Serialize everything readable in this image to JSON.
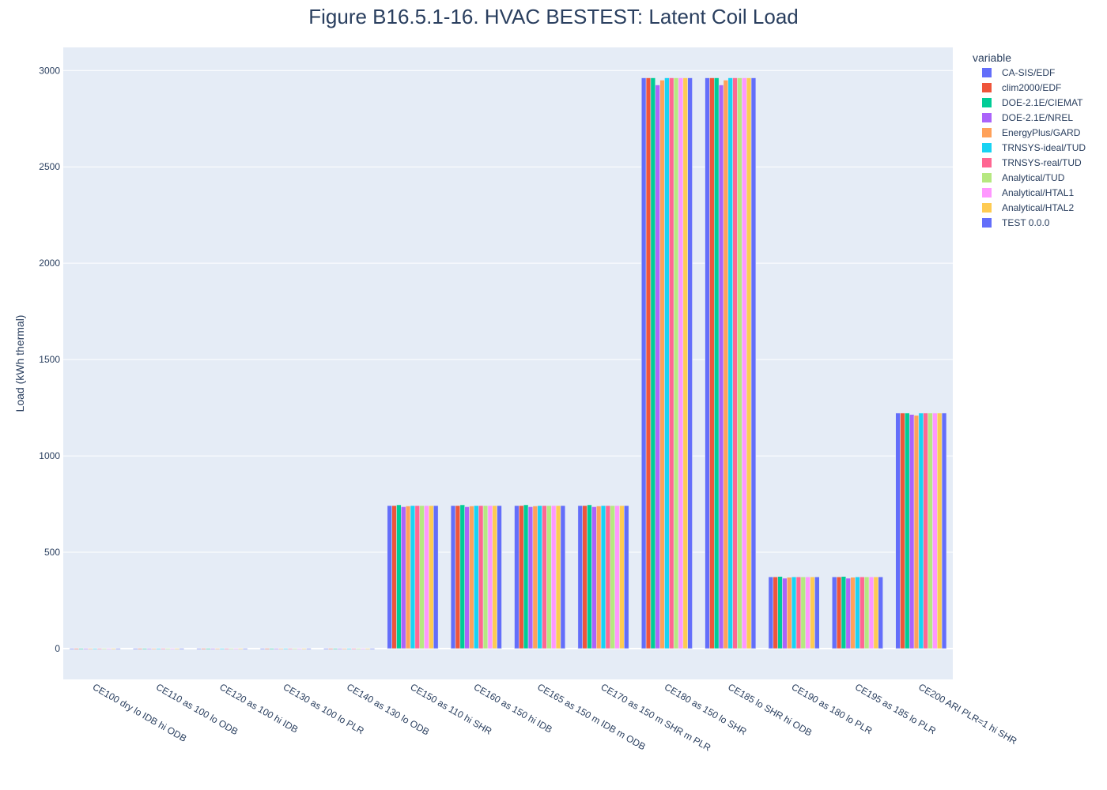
{
  "chart_data": {
    "type": "bar",
    "title": "Figure B16.5.1-16. HVAC BESTEST: Latent Coil Load",
    "xlabel": "",
    "ylabel": "Load (kWh thermal)",
    "ylim": [
      -160,
      3120
    ],
    "yticks": [
      0,
      500,
      1000,
      1500,
      2000,
      2500,
      3000
    ],
    "ytick_labels": [
      "0",
      "500",
      "1000",
      "1500",
      "2000",
      "2500",
      "3000"
    ],
    "grid": true,
    "legend_title": "variable",
    "legend_position": "right",
    "categories": [
      "CE100 dry lo IDB hi ODB",
      "CE110 as 100 lo ODB",
      "CE120 as 100 hi IDB",
      "CE130 as 100 lo PLR",
      "CE140 as 130 lo ODB",
      "CE150 as 110 hi SHR",
      "CE160 as 150 hi IDB",
      "CE165 as 150 m IDB m ODB",
      "CE170 as 150 m SHR m PLR",
      "CE180 as 150 lo SHR",
      "CE185 lo SHR hi ODB",
      "CE190 as 180 lo PLR",
      "CE195 as 185 lo PLR",
      "CE200 ARI  PLR=1 hi SHR"
    ],
    "series": [
      {
        "name": "CA-SIS/EDF",
        "color": "#636efa",
        "values": [
          0,
          0,
          0,
          0,
          0,
          742,
          742,
          742,
          742,
          2962,
          2962,
          372,
          372,
          1222
        ]
      },
      {
        "name": "clim2000/EDF",
        "color": "#ef553b",
        "values": [
          0,
          0,
          0,
          0,
          0,
          742,
          742,
          742,
          742,
          2962,
          2962,
          372,
          372,
          1222
        ]
      },
      {
        "name": "DOE-2.1E/CIEMAT",
        "color": "#00cc96",
        "values": [
          0,
          0,
          0,
          0,
          0,
          746,
          746,
          746,
          746,
          2962,
          2962,
          374,
          374,
          1222
        ]
      },
      {
        "name": "DOE-2.1E/NREL",
        "color": "#ab63fa",
        "values": [
          0,
          0,
          0,
          0,
          0,
          736,
          736,
          736,
          736,
          2925,
          2925,
          365,
          365,
          1215
        ]
      },
      {
        "name": "EnergyPlus/GARD",
        "color": "#ffa15a",
        "values": [
          0,
          0,
          0,
          0,
          0,
          740,
          740,
          740,
          740,
          2950,
          2950,
          370,
          370,
          1210
        ]
      },
      {
        "name": "TRNSYS-ideal/TUD",
        "color": "#19d3f3",
        "values": [
          0,
          0,
          0,
          0,
          0,
          742,
          742,
          742,
          742,
          2962,
          2962,
          372,
          372,
          1222
        ]
      },
      {
        "name": "TRNSYS-real/TUD",
        "color": "#ff6692",
        "values": [
          0,
          0,
          0,
          0,
          0,
          742,
          742,
          742,
          742,
          2962,
          2962,
          372,
          372,
          1222
        ]
      },
      {
        "name": "Analytical/TUD",
        "color": "#b6e880",
        "values": [
          0,
          0,
          0,
          0,
          0,
          742,
          742,
          742,
          742,
          2962,
          2962,
          372,
          372,
          1222
        ]
      },
      {
        "name": "Analytical/HTAL1",
        "color": "#ff97ff",
        "values": [
          0,
          0,
          0,
          0,
          0,
          742,
          742,
          742,
          742,
          2962,
          2962,
          372,
          372,
          1222
        ]
      },
      {
        "name": "Analytical/HTAL2",
        "color": "#fecb52",
        "values": [
          0,
          0,
          0,
          0,
          0,
          742,
          742,
          742,
          742,
          2962,
          2962,
          372,
          372,
          1222
        ]
      },
      {
        "name": "TEST 0.0.0",
        "color": "#636efa",
        "values": [
          0,
          0,
          0,
          0,
          0,
          742,
          742,
          742,
          742,
          2962,
          2962,
          372,
          372,
          1222
        ]
      }
    ]
  }
}
